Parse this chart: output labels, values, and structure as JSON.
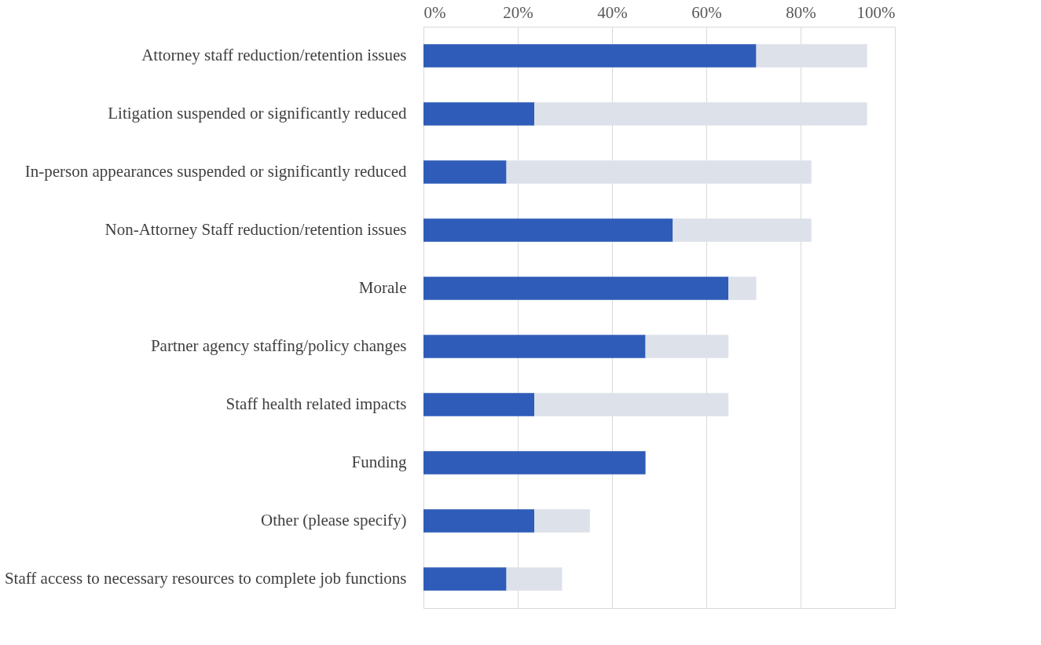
{
  "chart_data": {
    "type": "bar",
    "orientation": "horizontal",
    "stacked": true,
    "categories": [
      "Attorney staff reduction/retention issues",
      "Litigation suspended or significantly reduced",
      "In-person appearances suspended or significantly reduced",
      "Non-Attorney Staff reduction/retention issues",
      "Morale",
      "Partner agency staffing/policy changes",
      "Staff health related impacts",
      "Funding",
      "Other (please specify)",
      "Staff access to necessary resources to complete job functions"
    ],
    "series": [
      {
        "color": "#2f5cb8",
        "values": [
          70.6,
          23.5,
          17.6,
          52.9,
          64.7,
          47.1,
          23.5,
          47.1,
          23.5,
          17.6
        ]
      },
      {
        "color": "#dde1ea",
        "values": [
          23.5,
          70.6,
          64.7,
          29.4,
          5.9,
          17.6,
          41.2,
          null,
          11.8,
          11.8
        ]
      }
    ],
    "xlim": [
      0,
      100
    ],
    "xticks": [
      {
        "value": 0,
        "label": "0%"
      },
      {
        "value": 20,
        "label": "20%"
      },
      {
        "value": 40,
        "label": "40%"
      },
      {
        "value": 60,
        "label": "60%"
      },
      {
        "value": 80,
        "label": "80%"
      },
      {
        "value": 100,
        "label": "100%"
      }
    ],
    "grid": "x",
    "legend": false
  }
}
